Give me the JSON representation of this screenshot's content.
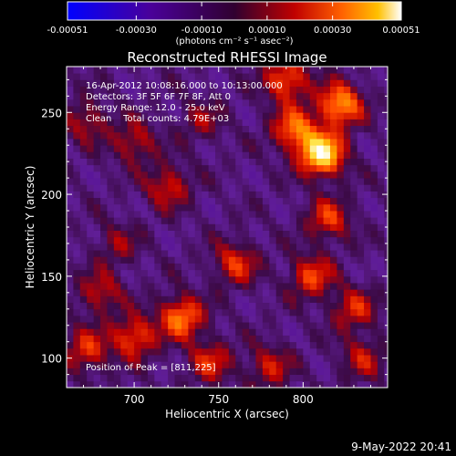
{
  "chart_data": {
    "type": "heatmap",
    "title": "Reconstructed RHESSI Image",
    "xlabel": "Heliocentric X (arcsec)",
    "ylabel": "Heliocentric Y (arcsec)",
    "xlim": [
      660,
      850
    ],
    "ylim": [
      82,
      278
    ],
    "x_ticks": [
      700,
      750,
      800
    ],
    "y_ticks": [
      100,
      150,
      200,
      250
    ],
    "colorbar": {
      "min": -0.00051,
      "max": 0.00051,
      "tick_values": [
        -0.00051,
        -0.0003,
        -0.0001,
        0.0001,
        0.0003,
        0.00051
      ],
      "tick_labels": [
        "-0.00051",
        "-0.00030",
        "-0.00010",
        "0.00010",
        "0.00030",
        "0.00051"
      ],
      "units_label": "(photons cm⁻² s⁻¹ asec⁻²)"
    },
    "info_lines": [
      "16-Apr-2012 10:08:16.000 to 10:13:00.000",
      "Detectors: 3F 5F 6F 7F 8F, Att 0",
      "Energy Range: 12.0 - 25.0 keV",
      "Clean    Total counts: 4.79E+03"
    ],
    "peak_label": "Position of Peak = [811,225]",
    "peak": [
      811,
      225
    ],
    "sources": [
      {
        "x": 811,
        "y": 225,
        "value": 0.00051
      },
      {
        "x": 822,
        "y": 255,
        "value": 0.00036
      },
      {
        "x": 795,
        "y": 240,
        "value": 0.0003
      },
      {
        "x": 790,
        "y": 270,
        "value": 0.00028
      },
      {
        "x": 815,
        "y": 185,
        "value": 0.00022
      },
      {
        "x": 728,
        "y": 125,
        "value": 0.00032
      },
      {
        "x": 700,
        "y": 113,
        "value": 0.00026
      },
      {
        "x": 672,
        "y": 105,
        "value": 0.00022
      },
      {
        "x": 745,
        "y": 98,
        "value": 0.0002
      },
      {
        "x": 805,
        "y": 150,
        "value": 0.00024
      },
      {
        "x": 760,
        "y": 158,
        "value": 0.00022
      },
      {
        "x": 720,
        "y": 205,
        "value": 0.0002
      },
      {
        "x": 700,
        "y": 232,
        "value": 0.00018
      },
      {
        "x": 672,
        "y": 245,
        "value": 0.00016
      },
      {
        "x": 680,
        "y": 140,
        "value": 0.00018
      },
      {
        "x": 780,
        "y": 95,
        "value": 0.00018
      },
      {
        "x": 835,
        "y": 100,
        "value": 0.00016
      },
      {
        "x": 830,
        "y": 130,
        "value": 0.0002
      },
      {
        "x": 690,
        "y": 170,
        "value": 0.00012
      },
      {
        "x": 740,
        "y": 245,
        "value": 0.00012
      }
    ]
  },
  "footer": {
    "timestamp": "9-May-2022 20:41"
  }
}
